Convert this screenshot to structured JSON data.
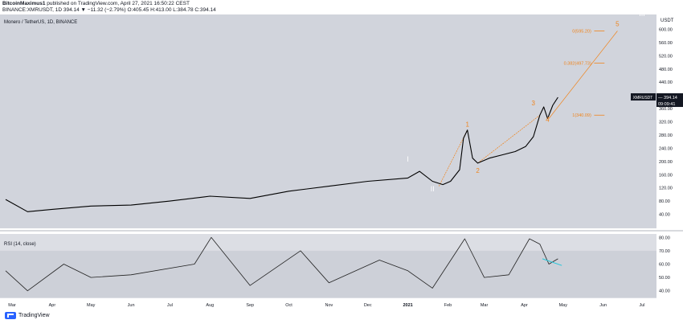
{
  "header": {
    "author": "BitcoinMaximus1",
    "published": "published on TradingView.com, April 27, 2021 16:50:22 CEST",
    "symbol_line": "BINANCE:XMRUSDT, 1D  394.14  ▼ −11.32 (−2.79%)  O:405.45  H:413.00  L:384.78  C:394.14"
  },
  "footer": {
    "brand": "TradingView"
  },
  "colors": {
    "main_bg": "#d1d4dc",
    "rsi_bg": "#dcdee4",
    "rsi_band": "#cdd0d8",
    "price": "#000000",
    "fib": "#f0841c",
    "wave": "#ffffff",
    "trend": "#26c6da"
  },
  "chart_data": [
    {
      "type": "line",
      "title": "Monero / TetherUS, 1D, BINANCE",
      "ylabel": "USDT",
      "ylim": [
        0,
        640
      ],
      "yticks": [
        "40.00",
        "80.00",
        "120.00",
        "160.00",
        "200.00",
        "240.00",
        "280.00",
        "320.00",
        "360.00",
        "400.00",
        "440.00",
        "480.00",
        "520.00",
        "560.00",
        "600.00"
      ],
      "x_ticks": [
        "Mar",
        "Apr",
        "May",
        "Jun",
        "Jul",
        "Aug",
        "Sep",
        "Oct",
        "Nov",
        "Dec",
        "2021",
        "Feb",
        "Mar",
        "Apr",
        "May",
        "Jun",
        "Jul"
      ],
      "x": [
        "2020-02-25",
        "2020-03-13",
        "2020-04-01",
        "2020-05-01",
        "2020-06-01",
        "2020-07-01",
        "2020-08-01",
        "2020-09-01",
        "2020-10-01",
        "2020-11-01",
        "2020-12-01",
        "2021-01-01",
        "2021-01-10",
        "2021-01-20",
        "2021-01-28",
        "2021-02-03",
        "2021-02-10",
        "2021-02-13",
        "2021-02-16",
        "2021-02-20",
        "2021-02-24",
        "2021-03-05",
        "2021-03-15",
        "2021-03-25",
        "2021-04-02",
        "2021-04-08",
        "2021-04-13",
        "2021-04-16",
        "2021-04-19",
        "2021-04-23",
        "2021-04-27"
      ],
      "values": [
        85,
        48,
        55,
        65,
        68,
        80,
        95,
        88,
        110,
        125,
        140,
        150,
        170,
        140,
        130,
        140,
        175,
        270,
        295,
        210,
        195,
        210,
        220,
        230,
        245,
        275,
        340,
        365,
        330,
        370,
        394.14
      ],
      "last_price": {
        "symbol": "XMRUSDT",
        "value": "394.14",
        "countdown": "09:09:41"
      },
      "fib_levels": [
        {
          "label": "0(595.20)",
          "value": 595.2
        },
        {
          "label": "0.382(497.73)",
          "value": 497.73
        },
        {
          "label": "1(340.09)",
          "value": 340.09
        }
      ],
      "wave_labels": [
        {
          "label": "I",
          "value": 200
        },
        {
          "label": "II",
          "value": 110
        },
        {
          "label": "III",
          "value": 640
        }
      ],
      "subwave_labels": [
        {
          "label": "1",
          "value": 305
        },
        {
          "label": "2",
          "value": 165
        },
        {
          "label": "3",
          "value": 370
        },
        {
          "label": "4",
          "value": 320
        },
        {
          "label": "5",
          "value": 610
        }
      ]
    },
    {
      "type": "line",
      "title": "RSI (14, close)",
      "ylim": [
        35,
        82
      ],
      "yticks": [
        "40.00",
        "50.00",
        "60.00",
        "70.00",
        "80.00"
      ],
      "band": [
        30,
        70
      ],
      "x": [
        "2020-02-25",
        "2020-03-13",
        "2020-04-10",
        "2020-05-01",
        "2020-06-01",
        "2020-07-20",
        "2020-08-02",
        "2020-09-01",
        "2020-10-10",
        "2020-11-01",
        "2020-12-10",
        "2021-01-01",
        "2021-01-20",
        "2021-02-14",
        "2021-03-01",
        "2021-03-20",
        "2021-04-05",
        "2021-04-13",
        "2021-04-20",
        "2021-04-27"
      ],
      "values": [
        55,
        40,
        60,
        50,
        52,
        60,
        80,
        44,
        70,
        46,
        63,
        55,
        42,
        79,
        50,
        52,
        79,
        75,
        60,
        64
      ]
    }
  ]
}
